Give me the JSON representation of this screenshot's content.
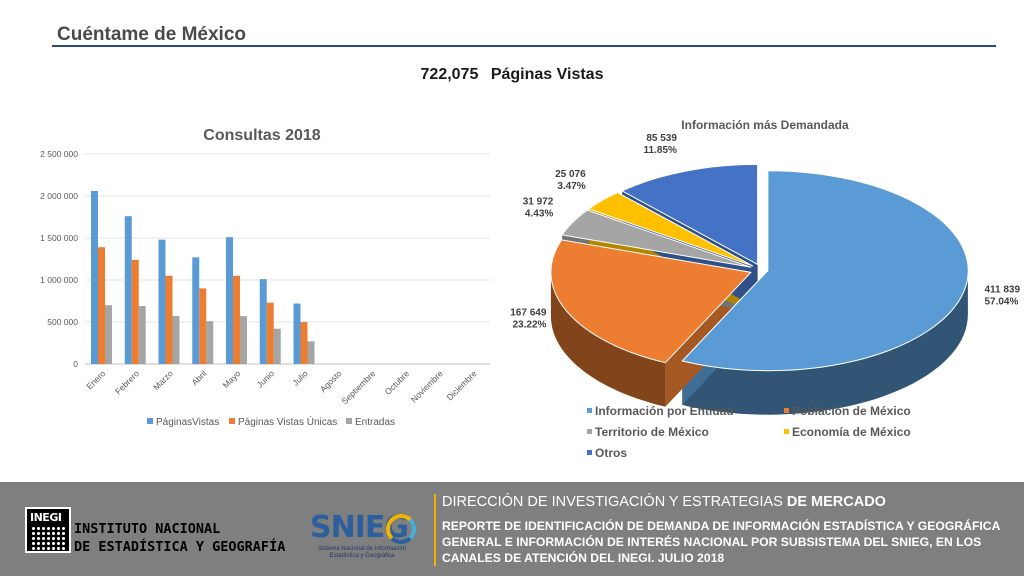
{
  "header": {
    "title": "Cuéntame de México",
    "total_value": "722,075",
    "total_label": "Páginas Vistas"
  },
  "chart_data": [
    {
      "type": "bar",
      "title": "Consultas 2018",
      "categories": [
        "Enero",
        "Febrero",
        "Marzo",
        "Abril",
        "Mayo",
        "Junio",
        "Julio",
        "Agosto",
        "Septiembre",
        "Octubre",
        "Noviembre",
        "Diciembre"
      ],
      "series": [
        {
          "name": "PáginasVistas",
          "color": "#5b9bd5",
          "values": [
            2060000,
            1760000,
            1480000,
            1270000,
            1510000,
            1010000,
            720000,
            null,
            null,
            null,
            null,
            null
          ]
        },
        {
          "name": "Páginas Vistas Únicas",
          "color": "#ed7d31",
          "values": [
            1390000,
            1240000,
            1050000,
            900000,
            1050000,
            730000,
            500000,
            null,
            null,
            null,
            null,
            null
          ]
        },
        {
          "name": "Entradas",
          "color": "#a5a5a5",
          "values": [
            700000,
            690000,
            570000,
            510000,
            570000,
            420000,
            270000,
            null,
            null,
            null,
            null,
            null
          ]
        }
      ],
      "yticks": [
        "0",
        "500 000",
        "1 000 000",
        "1 500 000",
        "2 000 000",
        "2 500 000"
      ],
      "ylim": [
        0,
        2500000
      ],
      "grid": true,
      "legend_position": "bottom"
    },
    {
      "type": "pie",
      "title": "Información más Demandada",
      "slices": [
        {
          "name": "Información por Entidad",
          "value": 411839,
          "value_label": "411 839",
          "percent": "57.04%",
          "color": "#5b9bd5"
        },
        {
          "name": "Población de México",
          "value": 167649,
          "value_label": "167 649",
          "percent": "23.22%",
          "color": "#ed7d31"
        },
        {
          "name": "Territorio de México",
          "value": 31972,
          "value_label": "31 972",
          "percent": "4.43%",
          "color": "#a5a5a5"
        },
        {
          "name": "Economía de México",
          "value": 25076,
          "value_label": "25 076",
          "percent": "3.47%",
          "color": "#ffc000"
        },
        {
          "name": "Otros",
          "value": 85539,
          "value_label": "85 539",
          "percent": "11.85%",
          "color": "#4472c4"
        }
      ],
      "style": "3d-exploded",
      "legend_position": "bottom"
    }
  ],
  "footer": {
    "inegi_tag": "INEGI",
    "inegi_line1": "INSTITUTO NACIONAL",
    "inegi_line2": "DE ESTADÍSTICA Y GEOGRAFÍA",
    "snieg_word": "SNIEG",
    "snieg_sub": "Sistema Nacional de Información Estadística y Geográfica",
    "heading_regular": "DIRECCIÓN DE INVESTIGACIÓN Y ESTRATEGIAS",
    "heading_bold": "DE MERCADO",
    "report": "REPORTE DE IDENTIFICACIÓN DE DEMANDA DE INFORMACIÓN ESTADÍSTICA Y GEOGRÁFICA GENERAL E INFORMACIÓN DE INTERÉS NACIONAL POR SUBSISTEMA DEL SNIEG, EN LOS CANALES DE ATENCIÓN DEL INEGI. JULIO 2018"
  }
}
